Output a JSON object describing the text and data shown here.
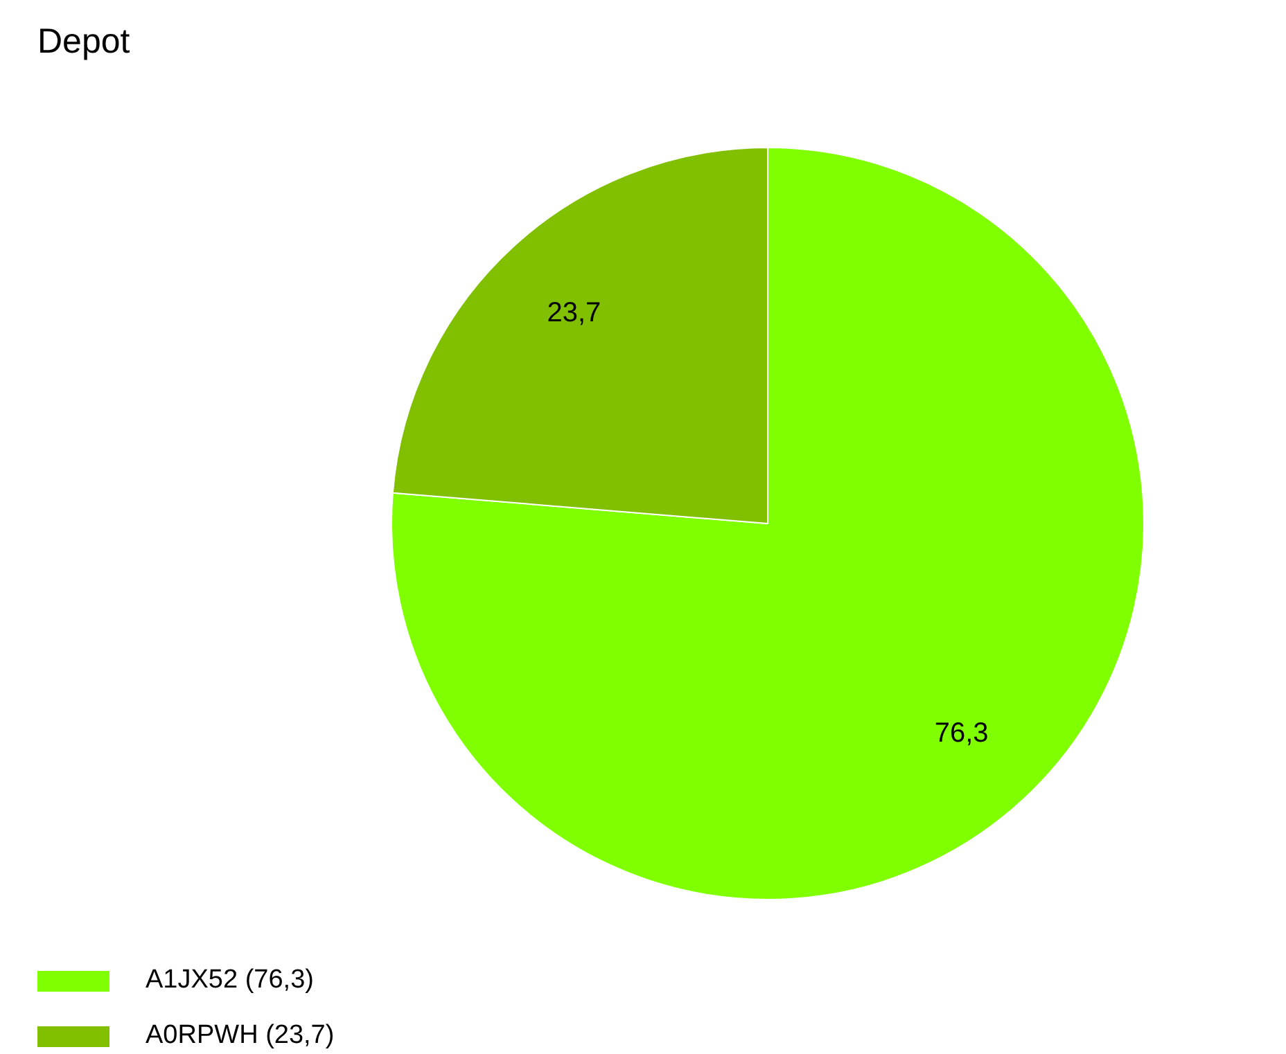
{
  "chart_data": {
    "type": "pie",
    "title": "Depot",
    "categories": [
      "A1JX52 (76,3)",
      "A0RPWH (23,7)"
    ],
    "values": [
      76.3,
      23.7
    ],
    "colors": [
      "#80ff00",
      "#80c000"
    ],
    "value_labels": [
      "76,3",
      "23,7"
    ],
    "legend": "bottom left"
  }
}
